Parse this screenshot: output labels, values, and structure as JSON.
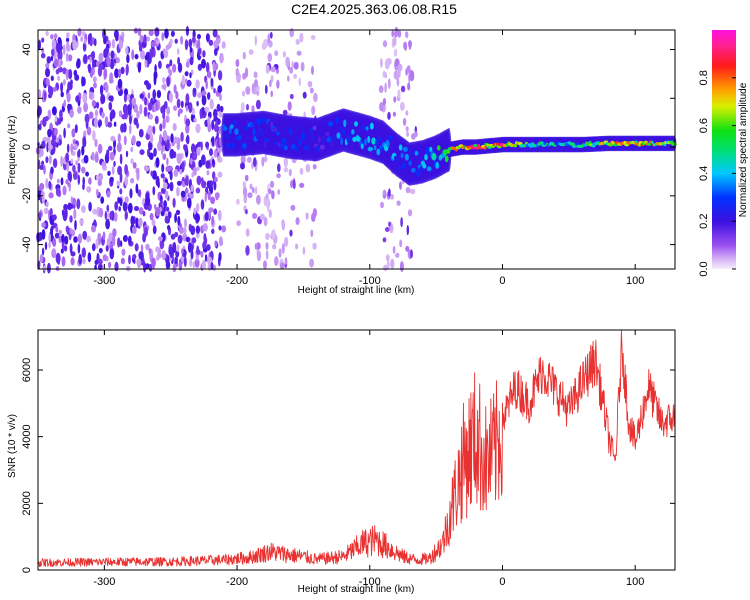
{
  "title": "C2E4.2025.363.06.08.R15",
  "chart_data": [
    {
      "type": "heatmap",
      "xlabel": "Height of straight line (km)",
      "ylabel": "Frequency (Hz)",
      "xlim": [
        -350,
        130
      ],
      "ylim": [
        -50,
        48
      ],
      "xticks": [
        -300,
        -200,
        -100,
        0,
        100
      ],
      "xtick_labels": [
        "-300",
        "-200",
        "-100",
        "0",
        "100"
      ],
      "yticks": [
        -40,
        -20,
        0,
        20,
        40
      ],
      "ytick_labels": [
        "-40",
        "-20",
        "0",
        "20",
        "40"
      ],
      "colorbar": {
        "label": "Normalized spectral amplitude",
        "range": [
          0,
          1
        ],
        "ticks": [
          0,
          0.2,
          0.4,
          0.6,
          0.8
        ],
        "tick_labels": [
          "0.0",
          "0.2",
          "0.4",
          "0.6",
          "0.8"
        ],
        "colormap": "rainbow (white-purple-blue-cyan-green-yellow-red-magenta)"
      },
      "signal_track": {
        "x": [
          -200,
          -180,
          -160,
          -140,
          -120,
          -100,
          -90,
          -80,
          -70,
          -60,
          -50,
          -40,
          -30,
          -20,
          -10,
          0,
          20,
          40,
          60,
          80,
          100,
          130
        ],
        "y": [
          5,
          6,
          4,
          3,
          7,
          4,
          2,
          -3,
          -7,
          -6,
          -4,
          -1,
          0,
          0,
          0.5,
          1,
          1,
          1,
          1,
          1.5,
          1.5,
          1.5
        ],
        "amplitude": [
          0.35,
          0.3,
          0.32,
          0.25,
          0.4,
          0.45,
          0.4,
          0.4,
          0.35,
          0.4,
          0.55,
          0.75,
          0.85,
          0.9,
          0.9,
          0.95,
          0.55,
          0.5,
          0.55,
          0.8,
          0.85,
          0.7
        ]
      },
      "noise_bands_x": [
        [
          -350,
          -210
        ],
        [
          -200,
          -140
        ],
        [
          -92,
          -78
        ],
        [
          -78,
          -65
        ]
      ]
    },
    {
      "type": "line",
      "xlabel": "Height of straight line (km)",
      "ylabel": "SNR (10 * v/v)",
      "xlim": [
        -350,
        130
      ],
      "ylim": [
        0,
        7200
      ],
      "xticks": [
        -300,
        -200,
        -100,
        0,
        100
      ],
      "xtick_labels": [
        "-300",
        "-200",
        "-100",
        "0",
        "100"
      ],
      "yticks": [
        0,
        2000,
        4000,
        6000
      ],
      "ytick_labels": [
        "0",
        "2000",
        "4000",
        "6000"
      ],
      "series": [
        {
          "name": "SNR",
          "color": "#e83232",
          "x": [
            -350,
            -300,
            -250,
            -210,
            -190,
            -175,
            -160,
            -150,
            -140,
            -120,
            -105,
            -95,
            -85,
            -75,
            -65,
            -55,
            -45,
            -40,
            -30,
            -20,
            -12,
            -5,
            0,
            10,
            20,
            30,
            40,
            50,
            60,
            70,
            75,
            80,
            85,
            90,
            95,
            100,
            110,
            120,
            130
          ],
          "y": [
            220,
            240,
            250,
            300,
            380,
            550,
            450,
            400,
            320,
            400,
            800,
            900,
            650,
            400,
            300,
            350,
            800,
            1600,
            3200,
            4000,
            3200,
            3600,
            4500,
            5500,
            5000,
            6000,
            5400,
            4800,
            5600,
            6300,
            5200,
            4000,
            3200,
            6800,
            4500,
            3800,
            5500,
            4400,
            4600
          ]
        }
      ]
    }
  ]
}
